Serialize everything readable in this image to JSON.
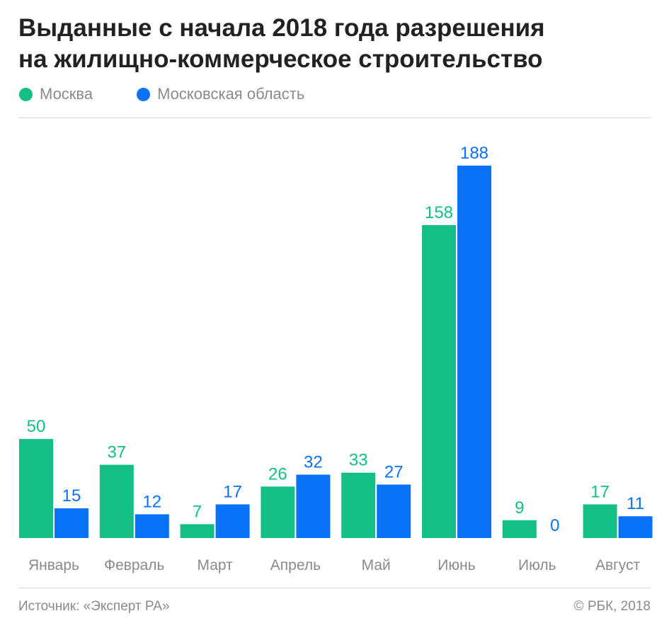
{
  "title_lines": [
    "Выданные с начала 2018 года разрешения",
    "на жилищно-коммерческое строительство"
  ],
  "legend": [
    {
      "label": "Москва",
      "color": "#13bf84"
    },
    {
      "label": "Московская область",
      "color": "#0a72f6"
    }
  ],
  "chart_data": {
    "type": "bar",
    "categories": [
      "Январь",
      "Февраль",
      "Март",
      "Апрель",
      "Май",
      "Июнь",
      "Июль",
      "Август"
    ],
    "series": [
      {
        "name": "Москва",
        "color": "#13bf84",
        "values": [
          50,
          37,
          7,
          26,
          33,
          158,
          9,
          17
        ]
      },
      {
        "name": "Московская область",
        "color": "#0a72f6",
        "values": [
          15,
          12,
          17,
          32,
          27,
          188,
          0,
          11
        ]
      }
    ],
    "title": "Выданные с начала 2018 года разрешения на жилищно-коммерческое строительство",
    "xlabel": "",
    "ylabel": "",
    "ylim": [
      0,
      188
    ],
    "grid": false,
    "legend_position": "top-left"
  },
  "footer": {
    "source": "Источник: «Эксперт РА»",
    "credit": "© РБК, 2018"
  }
}
